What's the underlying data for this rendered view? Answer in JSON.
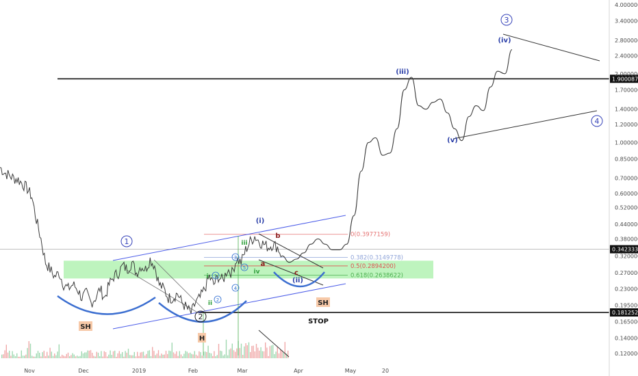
{
  "chart_data": {
    "type": "line",
    "title": "",
    "y_scale": "log",
    "ylim": [
      0.105,
      4.1
    ],
    "xlabel": "",
    "ylabel": "",
    "grid": false,
    "y_ticks": [
      "4.0000000",
      "3.4000000",
      "2.8000000",
      "2.4000000",
      "2.0000000",
      "1.7000000",
      "1.4000000",
      "1.2000000",
      "1.0000000",
      "0.8500000",
      "0.7000000",
      "0.6000000",
      "0.5200000",
      "0.4400000",
      "0.3800000",
      "0.3200000",
      "0.2700000",
      "0.2300000",
      "0.1950000",
      "0.1650000",
      "0.1400000",
      "0.1200000"
    ],
    "x_ticks": [
      "Nov",
      "Dec",
      "2019",
      "Feb",
      "Mar",
      "Apr",
      "May",
      "20"
    ],
    "price_levels": [
      {
        "label": "1.9000870",
        "value": 1.900087,
        "style": "resistance"
      },
      {
        "label": "0.3423330",
        "value": 0.342333,
        "style": "current"
      },
      {
        "label": "0.1812522",
        "value": 0.1812522,
        "style": "stop"
      }
    ],
    "fib_levels": [
      {
        "label": "0(0.3977159)",
        "value": 0.3977159,
        "color": "#e57373"
      },
      {
        "label": "0.382(0.3149778)",
        "value": 0.3149778,
        "color": "#8ea3d8"
      },
      {
        "label": "0.5(0.2894200)",
        "value": 0.28942,
        "color": "#e05050"
      },
      {
        "label": "0.618(0.2638622)",
        "value": 0.2638622,
        "color": "#4caf50"
      }
    ],
    "green_zone": [
      0.255,
      0.305
    ],
    "series": [
      {
        "values": [
          0.78,
          0.74,
          0.72,
          0.7,
          0.69,
          0.66,
          0.63,
          0.58,
          0.46,
          0.38,
          0.3,
          0.28,
          0.26,
          0.27,
          0.24,
          0.23,
          0.24,
          0.23,
          0.21,
          0.22,
          0.2,
          0.21,
          0.23,
          0.21,
          0.24,
          0.26,
          0.27,
          0.29,
          0.28,
          0.3,
          0.27,
          0.29,
          0.28,
          0.31,
          0.29,
          0.24,
          0.23,
          0.21,
          0.21,
          0.22,
          0.2,
          0.19,
          0.18,
          0.2,
          0.21,
          0.23,
          0.26,
          0.24,
          0.26,
          0.25,
          0.28,
          0.27,
          0.31,
          0.3,
          0.34,
          0.37,
          0.39,
          0.37,
          0.36,
          0.35,
          0.36,
          0.35,
          0.32
        ]
      },
      {
        "values": [
          0.32,
          0.3,
          0.31,
          0.33,
          0.36,
          0.38,
          0.36,
          0.34,
          0.34,
          0.36,
          0.48,
          0.75,
          1.0,
          1.05,
          0.88,
          0.9,
          1.15,
          1.7,
          1.93,
          1.45,
          1.4,
          1.5,
          1.55,
          1.35,
          1.15,
          1.02,
          1.3,
          1.45,
          1.38,
          1.75,
          2.05,
          2.0,
          2.55
        ]
      }
    ],
    "annotations": [
      "1",
      "2",
      "3",
      "4",
      "(i)",
      "(ii)",
      "(iii)",
      "(iv)",
      "(v)",
      "1",
      "2",
      "3",
      "4",
      "i",
      "ii",
      "iii",
      "iv",
      "a",
      "b",
      "c",
      "SH",
      "SH",
      "H",
      "STOP"
    ]
  }
}
